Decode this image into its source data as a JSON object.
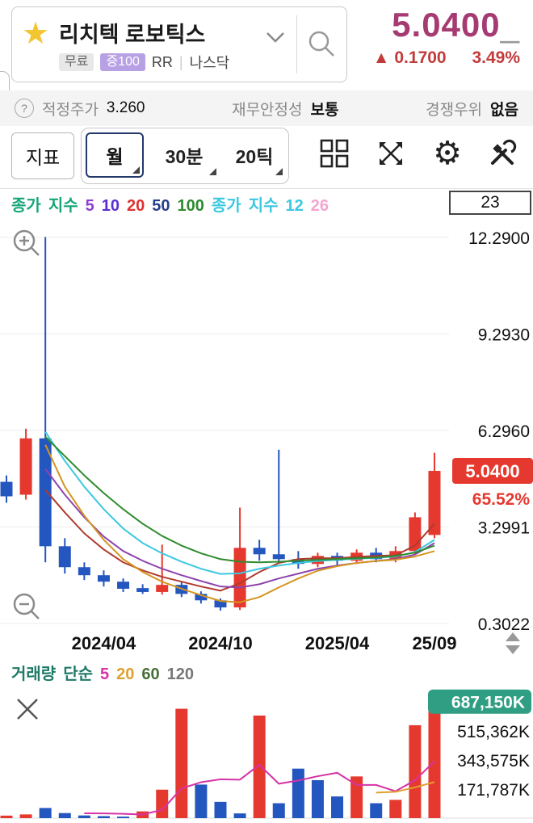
{
  "header": {
    "stock_name": "리치텍 로보틱스",
    "badges": {
      "free": "무료",
      "margin": "증100",
      "rr": "RR",
      "sep": "|",
      "market": "나스닥"
    },
    "price": "5.0400",
    "cursor": "_",
    "change_arrow": "▲",
    "change_value": "0.1700",
    "change_pct": "3.49%"
  },
  "info_bar": {
    "help": "?",
    "fair_price_label": "적정주가",
    "fair_price": "3.260",
    "stability_label": "재무안정성",
    "stability_value": "보통",
    "advantage_label": "경쟁우위",
    "advantage_value": "없음"
  },
  "toolbar": {
    "indicator": "지표",
    "month": "월",
    "min30": "30분",
    "tick20": "20틱"
  },
  "candle_count": "23",
  "legend_price": [
    {
      "text": "종가",
      "color": "#17a578"
    },
    {
      "text": "지수",
      "color": "#17a578"
    },
    {
      "text": "5",
      "color": "#8a3fd0"
    },
    {
      "text": "10",
      "color": "#5b2fd8"
    },
    {
      "text": "20",
      "color": "#e03131"
    },
    {
      "text": "50",
      "color": "#27408b"
    },
    {
      "text": "100",
      "color": "#2e8b2e"
    },
    {
      "text": "종가",
      "color": "#3cc8e0"
    },
    {
      "text": "지수",
      "color": "#3cc8e0"
    },
    {
      "text": "12",
      "color": "#3cc8e0"
    },
    {
      "text": "26",
      "color": "#f2a6d0"
    }
  ],
  "legend_volume": [
    {
      "text": "거래량",
      "color": "#1f7a68"
    },
    {
      "text": "단순",
      "color": "#1f7a68"
    },
    {
      "text": "5",
      "color": "#d633a6"
    },
    {
      "text": "20",
      "color": "#e0a030"
    },
    {
      "text": "60",
      "color": "#4a6e3a"
    },
    {
      "text": "120",
      "color": "#777777"
    }
  ],
  "colors": {
    "price_accent": "#a63a72",
    "change_red": "#c23b3b",
    "candle_up": "#e5392f",
    "candle_down": "#2456c0",
    "volume_badge": "#2f9e82",
    "selected_border": "#22386b"
  },
  "chart_data": {
    "type": "candlestick+volume",
    "up_color": "#e5392f",
    "down_color": "#2456c0",
    "price": {
      "ylim": [
        0.1,
        12.94
      ],
      "y_ticks": [
        {
          "v": 12.29,
          "label": "12.2900"
        },
        {
          "v": 9.293,
          "label": "9.2930"
        },
        {
          "v": 6.296,
          "label": "6.2960"
        },
        {
          "v": 3.2991,
          "label": "3.2991"
        },
        {
          "v": 0.3022,
          "label": "0.3022"
        }
      ],
      "x_ticks": [
        {
          "i": 5,
          "label": "2024/04"
        },
        {
          "i": 11,
          "label": "2024/10"
        },
        {
          "i": 17,
          "label": "2025/04"
        },
        {
          "i": 22,
          "label": "25/09"
        }
      ],
      "candles": [
        [
          4.7,
          4.9,
          4.05,
          4.25
        ],
        [
          4.3,
          6.35,
          4.15,
          6.05
        ],
        [
          6.05,
          12.3,
          2.2,
          2.7
        ],
        [
          2.7,
          2.95,
          1.85,
          2.05
        ],
        [
          2.05,
          2.2,
          1.65,
          1.8
        ],
        [
          1.8,
          1.95,
          1.45,
          1.6
        ],
        [
          1.6,
          1.7,
          1.28,
          1.38
        ],
        [
          1.4,
          1.52,
          1.22,
          1.28
        ],
        [
          1.28,
          2.75,
          1.2,
          1.5
        ],
        [
          1.5,
          1.58,
          1.12,
          1.22
        ],
        [
          1.22,
          1.3,
          0.92,
          1.02
        ],
        [
          1.02,
          1.08,
          0.7,
          0.8
        ],
        [
          0.8,
          3.9,
          0.72,
          2.65
        ],
        [
          2.65,
          2.9,
          2.25,
          2.45
        ],
        [
          2.45,
          5.7,
          2.2,
          2.3
        ],
        [
          2.3,
          2.55,
          2.0,
          2.15
        ],
        [
          2.15,
          2.5,
          2.05,
          2.4
        ],
        [
          2.4,
          2.5,
          2.1,
          2.25
        ],
        [
          2.25,
          2.6,
          2.15,
          2.5
        ],
        [
          2.5,
          2.65,
          2.2,
          2.3
        ],
        [
          2.3,
          2.7,
          2.2,
          2.55
        ],
        [
          2.55,
          3.75,
          2.45,
          3.6
        ],
        [
          3.05,
          5.6,
          2.95,
          5.04
        ]
      ],
      "overlays": [
        {
          "name": "ma5",
          "color": "#b03a2e",
          "values": [
            null,
            null,
            4.45,
            3.75,
            3.1,
            2.6,
            2.2,
            1.95,
            1.75,
            1.6,
            1.45,
            1.32,
            1.55,
            1.9,
            2.18,
            2.3,
            2.33,
            2.33,
            2.37,
            2.4,
            2.42,
            2.72,
            3.4
          ]
        },
        {
          "name": "ma10",
          "color": "#8e44ad",
          "values": [
            null,
            null,
            5.1,
            4.3,
            3.6,
            3.0,
            2.55,
            2.25,
            2.0,
            1.8,
            1.62,
            1.45,
            1.42,
            1.52,
            1.7,
            1.85,
            2.0,
            2.1,
            2.18,
            2.24,
            2.3,
            2.44,
            2.8
          ]
        },
        {
          "name": "ma20",
          "color": "#d4951f",
          "values": [
            null,
            null,
            5.85,
            4.55,
            3.65,
            2.9,
            2.3,
            1.9,
            1.6,
            1.38,
            1.18,
            1.0,
            0.96,
            1.12,
            1.42,
            1.7,
            1.94,
            2.08,
            2.18,
            2.24,
            2.28,
            2.38,
            2.55
          ]
        },
        {
          "name": "ema12",
          "color": "#3cc8e0",
          "values": [
            null,
            null,
            6.25,
            5.35,
            4.55,
            3.85,
            3.25,
            2.8,
            2.48,
            2.22,
            2.0,
            1.84,
            1.86,
            2.0,
            2.1,
            2.18,
            2.24,
            2.28,
            2.31,
            2.34,
            2.38,
            2.52,
            2.9
          ]
        },
        {
          "name": "ma100",
          "color": "#2e8b2e",
          "values": [
            null,
            null,
            6.1,
            5.5,
            4.9,
            4.35,
            3.85,
            3.4,
            3.02,
            2.72,
            2.48,
            2.3,
            2.22,
            2.2,
            2.22,
            2.25,
            2.28,
            2.3,
            2.33,
            2.35,
            2.4,
            2.5,
            2.72
          ]
        }
      ],
      "price_tag": {
        "label": "5.0400",
        "value": 5.04,
        "pct": "65.52%"
      }
    },
    "volume": {
      "ylim": [
        0,
        800000
      ],
      "ticks": [
        {
          "v": 687150,
          "label": "687,150K",
          "highlight": true
        },
        {
          "v": 515362,
          "label": "515,362K"
        },
        {
          "v": 343575,
          "label": "343,575K"
        },
        {
          "v": 171787,
          "label": "171,787K"
        }
      ],
      "bars": [
        15000,
        22000,
        60000,
        30000,
        16000,
        12000,
        9000,
        40000,
        168000,
        645000,
        198000,
        96000,
        28000,
        605000,
        88000,
        292000,
        224000,
        128000,
        246000,
        88000,
        108000,
        548000,
        687150
      ],
      "colors": [
        "r",
        "r",
        "b",
        "b",
        "b",
        "b",
        "b",
        "r",
        "r",
        "r",
        "b",
        "b",
        "b",
        "r",
        "b",
        "b",
        "b",
        "b",
        "r",
        "b",
        "r",
        "r",
        "r"
      ],
      "ma": [
        {
          "window": 5,
          "color": "#d633a6"
        },
        {
          "window": 20,
          "color": "#e0a030"
        }
      ]
    }
  }
}
